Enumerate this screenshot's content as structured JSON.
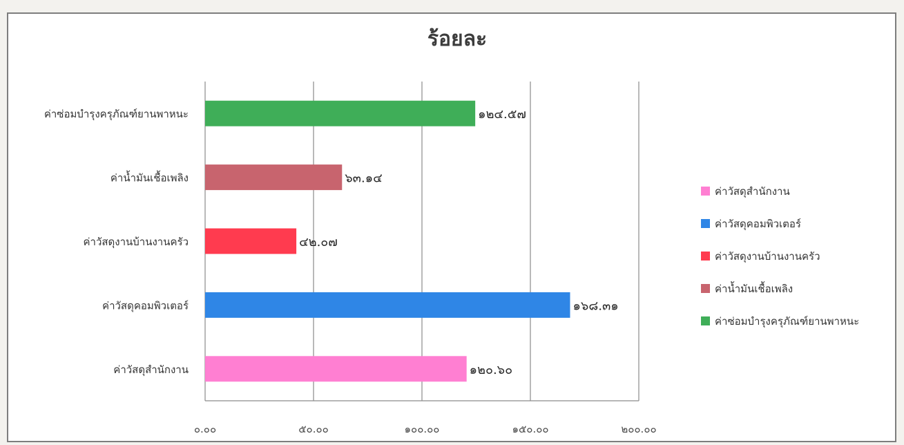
{
  "chart_data": {
    "type": "bar",
    "orientation": "horizontal",
    "title": "ร้อยละ",
    "categories": [
      "ค่าวัสดุสำนักงาน",
      "ค่าวัสดุคอมพิวเตอร์",
      "ค่าวัสดุงานบ้านงานครัว",
      "ค่าน้ำมันเชื้อเพลิง",
      "ค่าซ่อมบำรุงครุภัณฑ์ยานพาหนะ"
    ],
    "values": [
      120.6,
      168.31,
      42.07,
      63.14,
      124.57
    ],
    "value_labels": [
      "๑๒๐.๖๐",
      "๑๖๘.๓๑",
      "๔๒.๐๗",
      "๖๓.๑๔",
      "๑๒๔.๕๗"
    ],
    "colors": [
      "#ff7fd2",
      "#2f86e6",
      "#ff3b4f",
      "#c8646e",
      "#3fae58"
    ],
    "xlim": [
      0,
      200
    ],
    "x_ticks": [
      0,
      50,
      100,
      150,
      200
    ],
    "x_tick_labels": [
      "๐.๐๐",
      "๕๐.๐๐",
      "๑๐๐.๐๐",
      "๑๕๐.๐๐",
      "๒๐๐.๐๐"
    ],
    "grid": true,
    "legend_position": "right",
    "legend": [
      "ค่าวัสดุสำนักงาน",
      "ค่าวัสดุคอมพิวเตอร์",
      "ค่าวัสดุงานบ้านงานครัว",
      "ค่าน้ำมันเชื้อเพลิง",
      "ค่าซ่อมบำรุงครุภัณฑ์ยานพาหนะ"
    ]
  }
}
